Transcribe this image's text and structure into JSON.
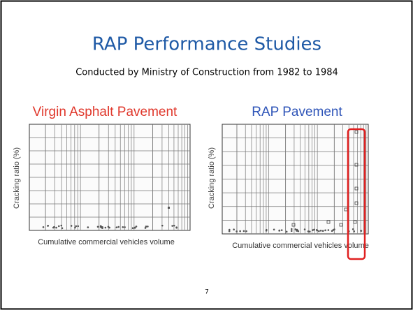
{
  "slide": {
    "title": "RAP Performance Studies",
    "subtitle": "Conducted by Ministry of Construction from 1982 to 1984",
    "panels": [
      {
        "heading": "Virgin Asphalt Pavement",
        "y_axis_label": "Cracking ratio (%)",
        "x_axis_label": "Cumulative commercial vehicles volume"
      },
      {
        "heading": "RAP Pavement",
        "y_axis_label": "Cracking ratio (%)",
        "x_axis_label": "Cumulative commercial vehicles volume"
      }
    ],
    "page_number": "7"
  }
}
